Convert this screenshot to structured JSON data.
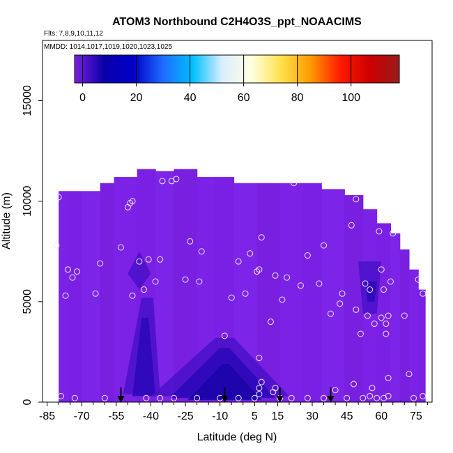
{
  "chart_data": {
    "type": "heatmap",
    "title": "ATOM3 Northbound C2H4O3S_ppt_NOAACIMS",
    "flights_text": "Flts: 7,8,9,10,11,12",
    "mmdd_text": "MMDD: 1014,1017,1019,1020,1023,1025",
    "xlabel": "Latitude (deg N)",
    "ylabel": "Altitude (m)",
    "xlim": [
      -87,
      82
    ],
    "ylim": [
      0,
      18000
    ],
    "x_ticks": [
      -85,
      -70,
      -55,
      -40,
      -25,
      -10,
      5,
      15,
      30,
      45,
      60,
      75
    ],
    "x_tick_labels": [
      "-85",
      "-70",
      "-55",
      "-40",
      "-25",
      "-10",
      "5",
      "15",
      "30",
      "45",
      "60",
      "75"
    ],
    "y_ticks": [
      0,
      5000,
      10000,
      15000
    ],
    "y_tick_labels": [
      "0",
      "5000",
      "10000",
      "15000"
    ],
    "colorbar": {
      "range": [
        -3,
        118
      ],
      "ticks": [
        0,
        20,
        40,
        60,
        80,
        100
      ],
      "tick_labels": [
        "0",
        "20",
        "40",
        "60",
        "80",
        "100"
      ],
      "colors": [
        "#7a1fe0",
        "#0a00a8",
        "#0000c8",
        "#1e6cff",
        "#00bfff",
        "#dbeeff",
        "#ffffe0",
        "#ffe14a",
        "#ff9900",
        "#ff1a00",
        "#cc0000",
        "#9a1b1b"
      ]
    },
    "arrows_lat": [
      -53,
      -8,
      16,
      38
    ],
    "column_tops": [
      {
        "lat0": -80,
        "lat1": -76,
        "top": 10500
      },
      {
        "lat0": -76,
        "lat1": -70,
        "top": 10500
      },
      {
        "lat0": -70,
        "lat1": -62,
        "top": 10500
      },
      {
        "lat0": -62,
        "lat1": -56,
        "top": 10900
      },
      {
        "lat0": -56,
        "lat1": -46,
        "top": 11200
      },
      {
        "lat0": -46,
        "lat1": -38,
        "top": 11600
      },
      {
        "lat0": -38,
        "lat1": -30,
        "top": 11500
      },
      {
        "lat0": -30,
        "lat1": -20,
        "top": 11600
      },
      {
        "lat0": -20,
        "lat1": -12,
        "top": 11200
      },
      {
        "lat0": -12,
        "lat1": -4,
        "top": 11200
      },
      {
        "lat0": -4,
        "lat1": 6,
        "top": 10900
      },
      {
        "lat0": 6,
        "lat1": 16,
        "top": 10900
      },
      {
        "lat0": 16,
        "lat1": 26,
        "top": 10900
      },
      {
        "lat0": 26,
        "lat1": 34,
        "top": 10900
      },
      {
        "lat0": 34,
        "lat1": 44,
        "top": 10600
      },
      {
        "lat0": 44,
        "lat1": 52,
        "top": 10300
      },
      {
        "lat0": 52,
        "lat1": 58,
        "top": 9600
      },
      {
        "lat0": 58,
        "lat1": 64,
        "top": 8900
      },
      {
        "lat0": 64,
        "lat1": 68,
        "top": 8400
      },
      {
        "lat0": 68,
        "lat1": 72,
        "top": 7600
      },
      {
        "lat0": 72,
        "lat1": 76,
        "top": 6600
      },
      {
        "lat0": 76,
        "lat1": 79,
        "top": 5600
      }
    ],
    "dark_regions": [
      {
        "color": "#4a10c8",
        "points": [
          [
            -52,
            400
          ],
          [
            -44,
            5200
          ],
          [
            -39,
            5200
          ],
          [
            -36,
            400
          ]
        ]
      },
      {
        "color": "#2a08b8",
        "points": [
          [
            -48,
            300
          ],
          [
            -44,
            4200
          ],
          [
            -41,
            4200
          ],
          [
            -38,
            300
          ]
        ]
      },
      {
        "color": "#4a10c8",
        "points": [
          [
            -40,
            300
          ],
          [
            -12,
            3200
          ],
          [
            -4,
            3200
          ],
          [
            20,
            300
          ]
        ]
      },
      {
        "color": "#2a08b8",
        "points": [
          [
            -32,
            200
          ],
          [
            -10,
            2700
          ],
          [
            -6,
            2700
          ],
          [
            14,
            200
          ]
        ]
      },
      {
        "color": "#1a04a8",
        "points": [
          [
            -24,
            100
          ],
          [
            -9,
            1900
          ],
          [
            -6,
            1900
          ],
          [
            8,
            100
          ]
        ]
      },
      {
        "color": "#4a10c8",
        "points": [
          [
            50,
            7000
          ],
          [
            52,
            4400
          ],
          [
            58,
            4400
          ],
          [
            60,
            7000
          ]
        ]
      },
      {
        "color": "#2a08b8",
        "points": [
          [
            53,
            6000
          ],
          [
            54,
            5000
          ],
          [
            57,
            5000
          ],
          [
            58,
            6000
          ]
        ]
      },
      {
        "color": "#4a10c8",
        "points": [
          [
            -50,
            6400
          ],
          [
            -45,
            7500
          ],
          [
            -40,
            6400
          ],
          [
            -45,
            5600
          ]
        ]
      }
    ],
    "points": [
      [
        -80,
        10200
      ],
      [
        -81,
        7800
      ],
      [
        -76,
        6600
      ],
      [
        -74,
        6200
      ],
      [
        -72,
        6500
      ],
      [
        -77,
        5300
      ],
      [
        -62,
        6900
      ],
      [
        -64,
        5400
      ],
      [
        -53,
        7700
      ],
      [
        -50,
        9700
      ],
      [
        -49,
        9900
      ],
      [
        -48,
        10000
      ],
      [
        -48,
        5300
      ],
      [
        -45,
        7000
      ],
      [
        -43,
        5600
      ],
      [
        -41,
        7100
      ],
      [
        -38,
        6000
      ],
      [
        -36,
        7100
      ],
      [
        -35,
        11000
      ],
      [
        -31,
        11000
      ],
      [
        -29,
        11100
      ],
      [
        -25,
        6100
      ],
      [
        -23,
        8000
      ],
      [
        -19,
        6000
      ],
      [
        -18,
        7500
      ],
      [
        -8,
        3300
      ],
      [
        -5,
        5200
      ],
      [
        -2,
        7000
      ],
      [
        1,
        5400
      ],
      [
        3,
        7400
      ],
      [
        6,
        6500
      ],
      [
        7,
        6600
      ],
      [
        7,
        2200
      ],
      [
        8,
        8200
      ],
      [
        12,
        4000
      ],
      [
        14,
        6300
      ],
      [
        17,
        5100
      ],
      [
        19,
        6200
      ],
      [
        22,
        10900
      ],
      [
        25,
        5800
      ],
      [
        28,
        7300
      ],
      [
        33,
        5900
      ],
      [
        35,
        7800
      ],
      [
        38,
        4400
      ],
      [
        42,
        4900
      ],
      [
        43,
        5400
      ],
      [
        47,
        8800
      ],
      [
        49,
        10100
      ],
      [
        49,
        4600
      ],
      [
        51,
        3400
      ],
      [
        53,
        5900
      ],
      [
        54,
        4300
      ],
      [
        55,
        5600
      ],
      [
        57,
        3900
      ],
      [
        59,
        8500
      ],
      [
        60,
        4200
      ],
      [
        60,
        6600
      ],
      [
        61,
        5600
      ],
      [
        62,
        3400
      ],
      [
        62,
        3900
      ],
      [
        63,
        4300
      ],
      [
        63,
        1200
      ],
      [
        64,
        6000
      ],
      [
        65,
        8400
      ],
      [
        70,
        4300
      ],
      [
        72,
        1400
      ],
      [
        76,
        6100
      ],
      [
        78,
        5400
      ],
      [
        -79,
        300
      ],
      [
        -73,
        200
      ],
      [
        -60,
        200
      ],
      [
        -42,
        200
      ],
      [
        -36,
        200
      ],
      [
        -30,
        200
      ],
      [
        -20,
        200
      ],
      [
        -10,
        200
      ],
      [
        -2,
        200
      ],
      [
        5,
        200
      ],
      [
        7,
        400
      ],
      [
        7,
        700
      ],
      [
        8,
        1000
      ],
      [
        13,
        500
      ],
      [
        14,
        700
      ],
      [
        16,
        200
      ],
      [
        21,
        200
      ],
      [
        28,
        200
      ],
      [
        35,
        200
      ],
      [
        40,
        600
      ],
      [
        45,
        200
      ],
      [
        48,
        900
      ],
      [
        52,
        200
      ],
      [
        55,
        300
      ],
      [
        56,
        700
      ],
      [
        58,
        200
      ],
      [
        61,
        200
      ],
      [
        63,
        300
      ],
      [
        74,
        200
      ],
      [
        78,
        300
      ]
    ]
  }
}
